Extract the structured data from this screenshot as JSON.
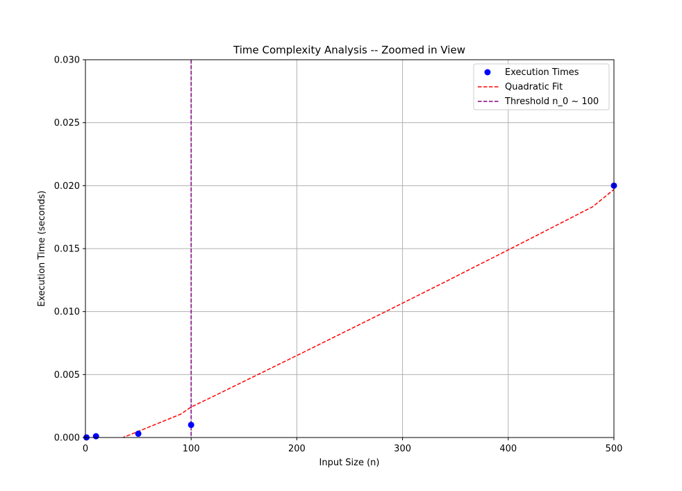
{
  "chart_data": {
    "type": "scatter",
    "title": "Time Complexity Analysis -- Zoomed in View",
    "xlabel": "Input Size (n)",
    "ylabel": "Execution Time (seconds)",
    "xlim": [
      0,
      500
    ],
    "ylim": [
      0,
      0.03
    ],
    "xticks": [
      0,
      100,
      200,
      300,
      400,
      500
    ],
    "xtick_labels": [
      "0",
      "100",
      "200",
      "300",
      "400",
      "500"
    ],
    "yticks": [
      0,
      0.005,
      0.01,
      0.015,
      0.02,
      0.025,
      0.03
    ],
    "ytick_labels": [
      "0.000",
      "0.005",
      "0.010",
      "0.015",
      "0.020",
      "0.025",
      "0.030"
    ],
    "grid": true,
    "legend_position": "top-right",
    "series": [
      {
        "name": "Execution Times",
        "kind": "scatter",
        "color": "#0000ff",
        "x": [
          1,
          10,
          50,
          100,
          500
        ],
        "y": [
          1e-05,
          0.0001,
          0.0003,
          0.001,
          0.02
        ]
      },
      {
        "name": "Quadratic Fit",
        "kind": "line",
        "style": "dashed",
        "color": "#ff0000",
        "x": [
          0,
          10,
          20,
          30,
          40,
          50,
          60,
          70,
          80,
          90,
          100,
          120,
          140,
          160,
          180,
          200,
          220,
          240,
          260,
          280,
          300,
          320,
          340,
          360,
          380,
          400,
          420,
          440,
          460,
          480,
          500
        ],
        "y": [
          -0.00121,
          -0.00087,
          -0.00053,
          -0.00019,
          0.00015,
          0.00049,
          0.00083,
          0.00117,
          0.00151,
          0.00185,
          0.00242,
          0.00323,
          0.00405,
          0.00487,
          0.00569,
          0.00651,
          0.00734,
          0.00817,
          0.009,
          0.00983,
          0.01067,
          0.01151,
          0.01235,
          0.0132,
          0.01405,
          0.0149,
          0.01575,
          0.01661,
          0.01747,
          0.01833,
          0.0197
        ]
      },
      {
        "name": "Threshold n_0 ~ 100",
        "kind": "vline",
        "style": "dashed",
        "color": "#800080",
        "x": 100
      }
    ]
  }
}
